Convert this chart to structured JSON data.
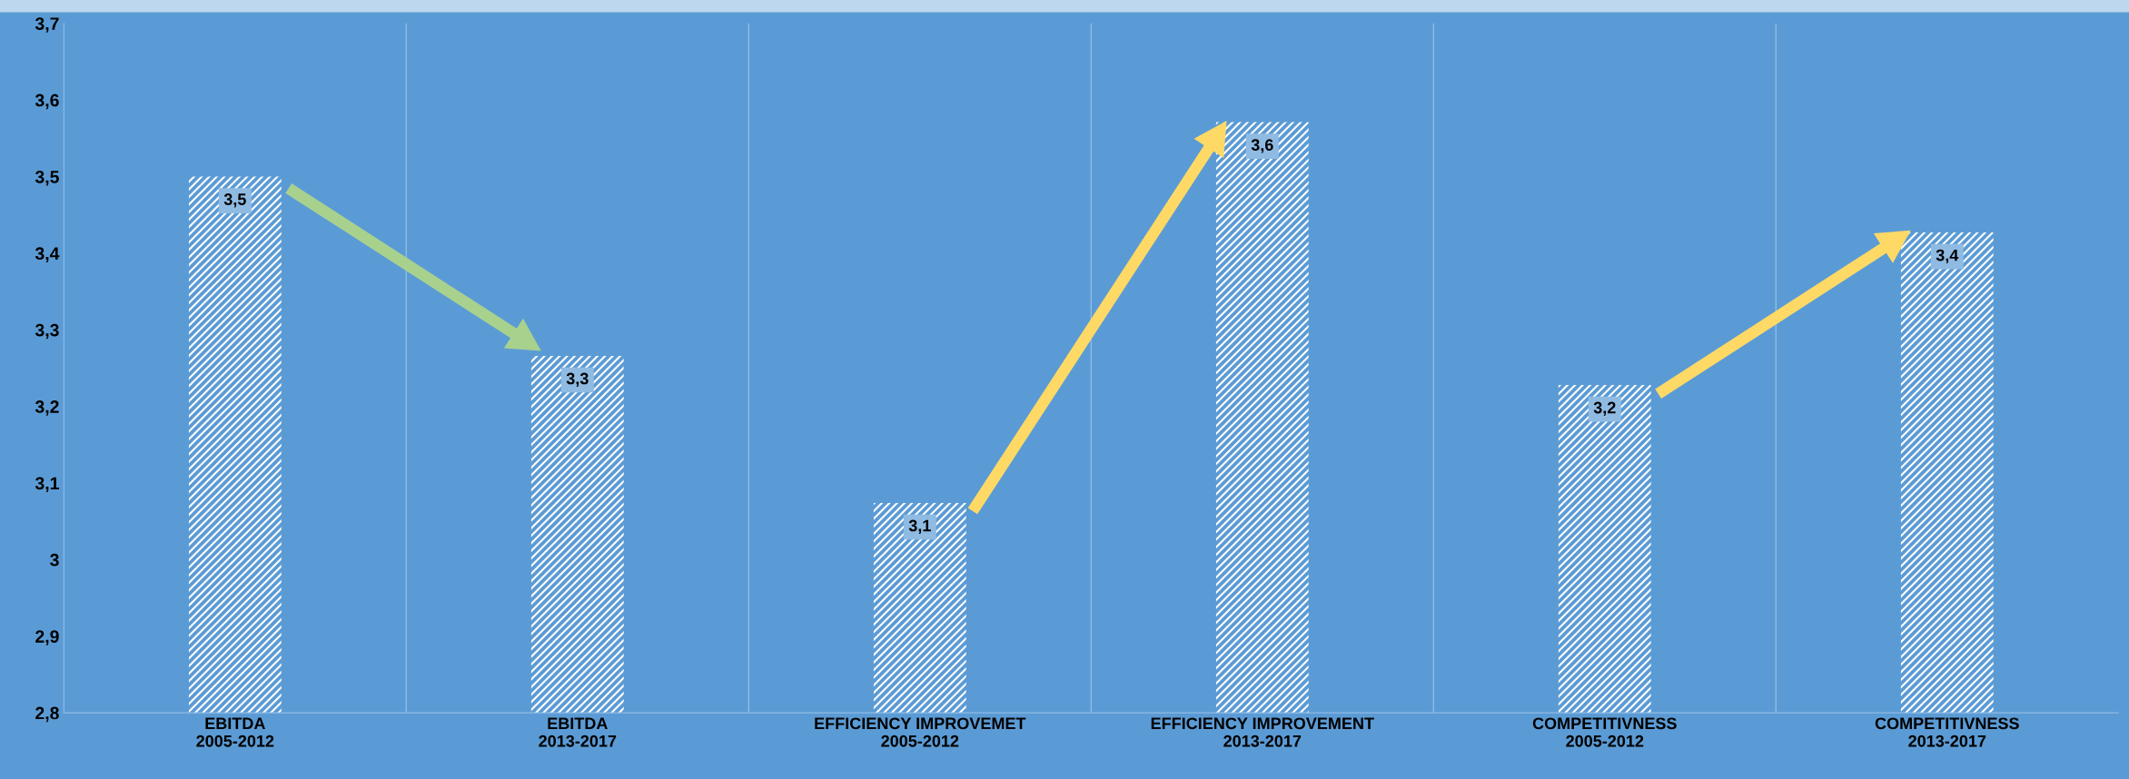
{
  "chart_data": {
    "type": "bar",
    "categories": [
      "EBITDA\n2005-2012",
      "EBITDA\n2013-2017",
      "EFFICIENCY IMPROVEMET\n2005-2012",
      "EFFICIENCY IMPROVEMENT\n2013-2017",
      "COMPETITIVNESS\n2005-2012",
      "COMPETITIVNESS\n2013-2017"
    ],
    "values": [
      3.5,
      3.266,
      3.074,
      3.571,
      3.228,
      3.427
    ],
    "value_labels": [
      "3,5",
      "3,3",
      "3,1",
      "3,6",
      "3,2",
      "3,4"
    ],
    "color": "#ffffff",
    "ylim": [
      2.8,
      3.7
    ],
    "yticks": [
      {
        "value": 2.8,
        "label": "2,8"
      },
      {
        "value": 2.9,
        "label": "2,9"
      },
      {
        "value": 3.0,
        "label": "3"
      },
      {
        "value": 3.1,
        "label": "3,1"
      },
      {
        "value": 3.2,
        "label": "3,2"
      },
      {
        "value": 3.3,
        "label": "3,3"
      },
      {
        "value": 3.4,
        "label": "3,4"
      },
      {
        "value": 3.5,
        "label": "3,5"
      },
      {
        "value": 3.6,
        "label": "3,6"
      },
      {
        "value": 3.7,
        "label": "3,7"
      }
    ],
    "grid": "x"
  }
}
